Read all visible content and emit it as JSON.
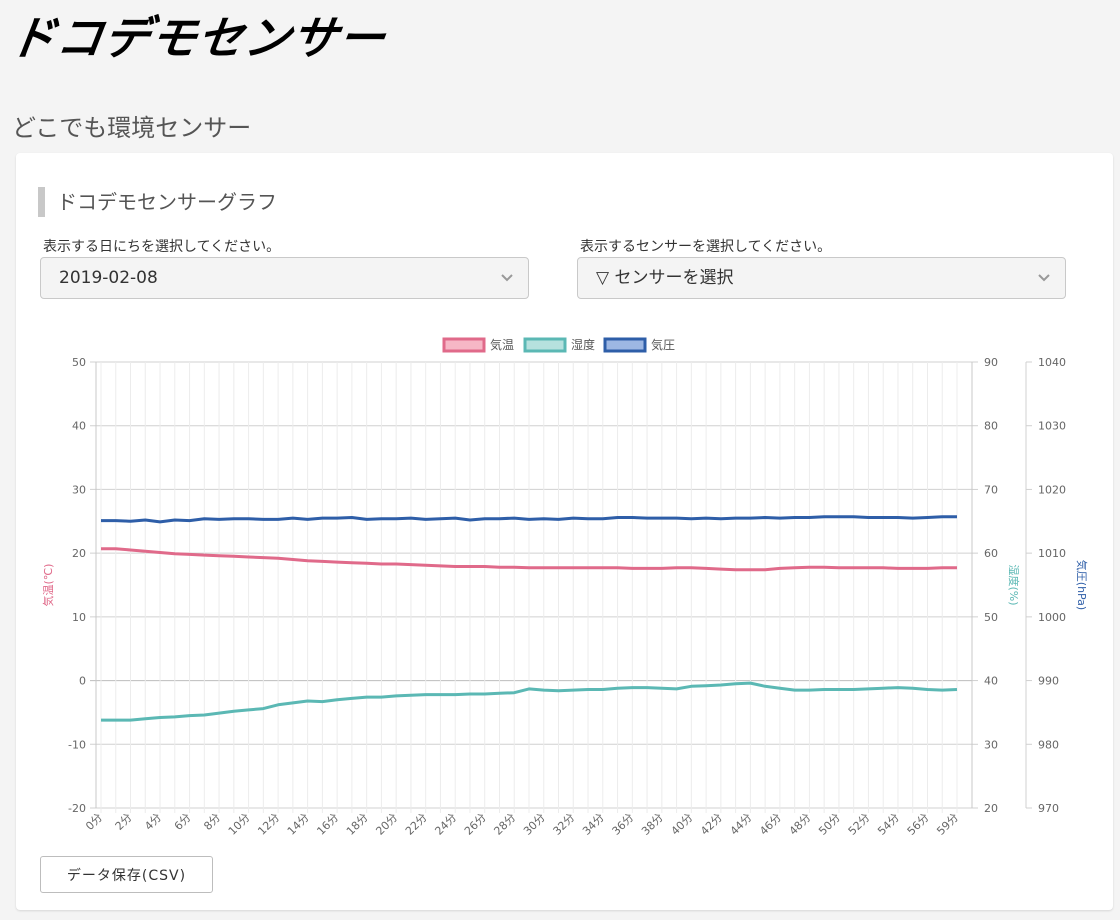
{
  "header": {
    "logo_text": "ドコデモセンサー",
    "subtitle": "どこでも環境センサー"
  },
  "card": {
    "title": "ドコデモセンサーグラフ",
    "date_label": "表示する日にちを選択してください。",
    "date_value": "2019-02-08",
    "sensor_label": "表示するセンサーを選択してください。",
    "sensor_value": "▽ センサーを選択",
    "csv_button": "データ保存(CSV)"
  },
  "colors": {
    "temperature": "#e06a8a",
    "humidity": "#5bb8b4",
    "pressure": "#2e5ea8"
  },
  "icons": {
    "select_arrow": "chevron-down-icon"
  },
  "chart_data": {
    "type": "line",
    "x_labels": [
      "0分",
      "2分",
      "4分",
      "6分",
      "8分",
      "10分",
      "12分",
      "14分",
      "16分",
      "18分",
      "20分",
      "22分",
      "24分",
      "26分",
      "28分",
      "30分",
      "32分",
      "34分",
      "36分",
      "38分",
      "40分",
      "42分",
      "44分",
      "46分",
      "48分",
      "50分",
      "52分",
      "54分",
      "56分",
      "59分"
    ],
    "x": [
      0,
      1,
      2,
      3,
      4,
      5,
      6,
      7,
      8,
      9,
      10,
      11,
      12,
      13,
      14,
      15,
      16,
      17,
      18,
      19,
      20,
      21,
      22,
      23,
      24,
      25,
      26,
      27,
      28,
      29,
      30,
      31,
      32,
      33,
      34,
      35,
      36,
      37,
      38,
      39,
      40,
      41,
      42,
      43,
      44,
      45,
      46,
      47,
      48,
      49,
      50,
      51,
      52,
      53,
      54,
      55,
      56,
      57,
      58
    ],
    "legend": [
      "気温",
      "湿度",
      "気圧"
    ],
    "axes": {
      "left": {
        "label": "気温(℃)",
        "ticks": [
          50,
          40,
          30,
          20,
          10,
          0,
          -10,
          -20
        ],
        "min": -20,
        "max": 50
      },
      "right1": {
        "label": "湿度(%)",
        "ticks": [
          90,
          80,
          70,
          60,
          50,
          40,
          30,
          20
        ],
        "min": 20,
        "max": 90
      },
      "right2": {
        "label": "気圧(hPa)",
        "ticks": [
          1040,
          1030,
          1020,
          1010,
          1000,
          990,
          980,
          970
        ],
        "min": 970,
        "max": 1040
      }
    },
    "series": [
      {
        "name": "気温",
        "axis": "left",
        "values": [
          20.7,
          20.7,
          20.5,
          20.3,
          20.1,
          19.9,
          19.8,
          19.7,
          19.6,
          19.5,
          19.4,
          19.3,
          19.2,
          19.0,
          18.8,
          18.7,
          18.6,
          18.5,
          18.4,
          18.3,
          18.3,
          18.2,
          18.1,
          18.0,
          17.9,
          17.9,
          17.9,
          17.8,
          17.8,
          17.7,
          17.7,
          17.7,
          17.7,
          17.7,
          17.7,
          17.7,
          17.6,
          17.6,
          17.6,
          17.7,
          17.7,
          17.6,
          17.5,
          17.4,
          17.4,
          17.4,
          17.6,
          17.7,
          17.8,
          17.8,
          17.7,
          17.7,
          17.7,
          17.7,
          17.6,
          17.6,
          17.6,
          17.7,
          17.7
        ]
      },
      {
        "name": "湿度",
        "axis": "right1",
        "values": [
          33.8,
          33.8,
          33.8,
          34.0,
          34.2,
          34.3,
          34.5,
          34.6,
          34.9,
          35.2,
          35.4,
          35.6,
          36.2,
          36.5,
          36.8,
          36.7,
          37.0,
          37.2,
          37.4,
          37.4,
          37.6,
          37.7,
          37.8,
          37.8,
          37.8,
          37.9,
          37.9,
          38.0,
          38.1,
          38.7,
          38.5,
          38.4,
          38.5,
          38.6,
          38.6,
          38.8,
          38.9,
          38.9,
          38.8,
          38.7,
          39.1,
          39.2,
          39.3,
          39.5,
          39.6,
          39.1,
          38.8,
          38.5,
          38.5,
          38.6,
          38.6,
          38.6,
          38.7,
          38.8,
          38.9,
          38.8,
          38.6,
          38.5,
          38.6
        ]
      },
      {
        "name": "気圧",
        "axis": "right2",
        "values": [
          1015.1,
          1015.1,
          1015.0,
          1015.2,
          1014.9,
          1015.2,
          1015.1,
          1015.4,
          1015.3,
          1015.4,
          1015.4,
          1015.3,
          1015.3,
          1015.5,
          1015.3,
          1015.5,
          1015.5,
          1015.6,
          1015.3,
          1015.4,
          1015.4,
          1015.5,
          1015.3,
          1015.4,
          1015.5,
          1015.2,
          1015.4,
          1015.4,
          1015.5,
          1015.3,
          1015.4,
          1015.3,
          1015.5,
          1015.4,
          1015.4,
          1015.6,
          1015.6,
          1015.5,
          1015.5,
          1015.5,
          1015.4,
          1015.5,
          1015.4,
          1015.5,
          1015.5,
          1015.6,
          1015.5,
          1015.6,
          1015.6,
          1015.7,
          1015.7,
          1015.7,
          1015.6,
          1015.6,
          1015.6,
          1015.5,
          1015.6,
          1015.7,
          1015.7
        ]
      }
    ]
  }
}
